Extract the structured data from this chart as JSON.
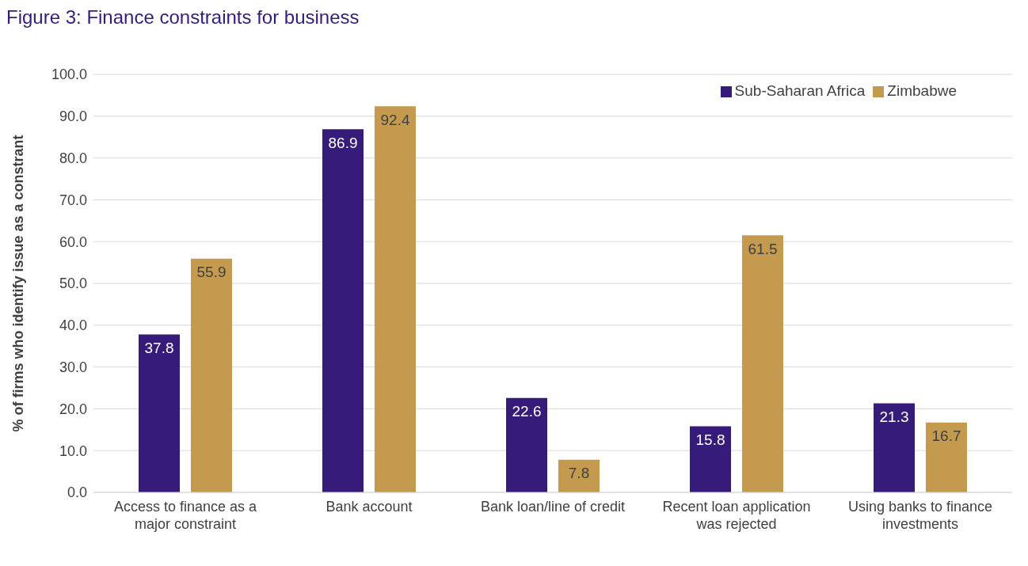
{
  "chart_data": {
    "type": "bar",
    "title": "Figure 3: Finance constraints for business",
    "ylabel": "% of firms who identify issue as a constrant",
    "categories": [
      "Access to finance as a major constraint",
      "Bank account",
      "Bank loan/line of credit",
      "Recent loan application was rejected",
      "Using banks to finance investments"
    ],
    "series": [
      {
        "name": "Sub-Saharan Africa",
        "color": "#361b7a",
        "values": [
          37.8,
          86.9,
          22.6,
          15.8,
          21.3
        ]
      },
      {
        "name": "Zimbabwe",
        "color": "#c49a4e",
        "values": [
          55.9,
          92.4,
          7.8,
          61.5,
          16.7
        ]
      }
    ],
    "ylim": [
      0,
      100
    ],
    "yticks": [
      {
        "value": 0,
        "label": "0.0"
      },
      {
        "value": 10,
        "label": "10.0"
      },
      {
        "value": 20,
        "label": "20.0"
      },
      {
        "value": 30,
        "label": "30.0"
      },
      {
        "value": 40,
        "label": "40.0"
      },
      {
        "value": 50,
        "label": "50.0"
      },
      {
        "value": 60,
        "label": "60.0"
      },
      {
        "value": 70,
        "label": "70.0"
      },
      {
        "value": 80,
        "label": "80.0"
      },
      {
        "value": 90,
        "label": "90.0"
      },
      {
        "value": 100,
        "label": "100.0"
      }
    ],
    "grid": "y",
    "legend": "top right",
    "data_labels": true
  }
}
